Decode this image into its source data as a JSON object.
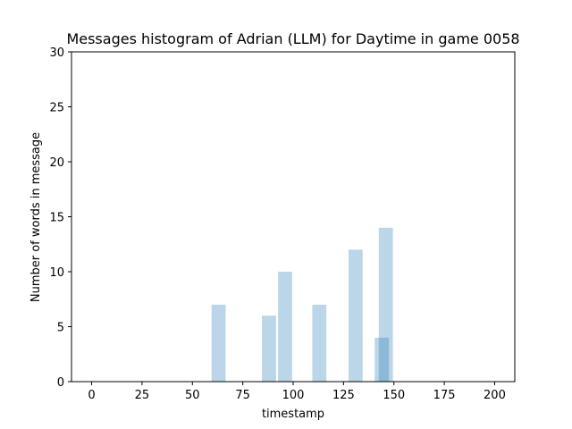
{
  "chart_data": {
    "type": "bar",
    "title": "Messages histogram of Adrian (LLM) for Daytime in game 0058",
    "xlabel": "timestamp",
    "ylabel": "Number of words in message",
    "xlim": [
      -10,
      210
    ],
    "ylim": [
      0,
      30
    ],
    "xticks": [
      0,
      25,
      50,
      75,
      100,
      125,
      150,
      175,
      200
    ],
    "yticks": [
      0,
      5,
      10,
      15,
      20,
      25,
      30
    ],
    "bar_color": "#1f77b4",
    "bar_opacity": 0.3,
    "bar_width": 7,
    "bars": [
      {
        "x": 63,
        "y": 7
      },
      {
        "x": 88,
        "y": 6
      },
      {
        "x": 96,
        "y": 10
      },
      {
        "x": 113,
        "y": 7
      },
      {
        "x": 131,
        "y": 12
      },
      {
        "x": 144,
        "y": 4
      },
      {
        "x": 146,
        "y": 14
      }
    ],
    "grid": false,
    "legend": false
  }
}
